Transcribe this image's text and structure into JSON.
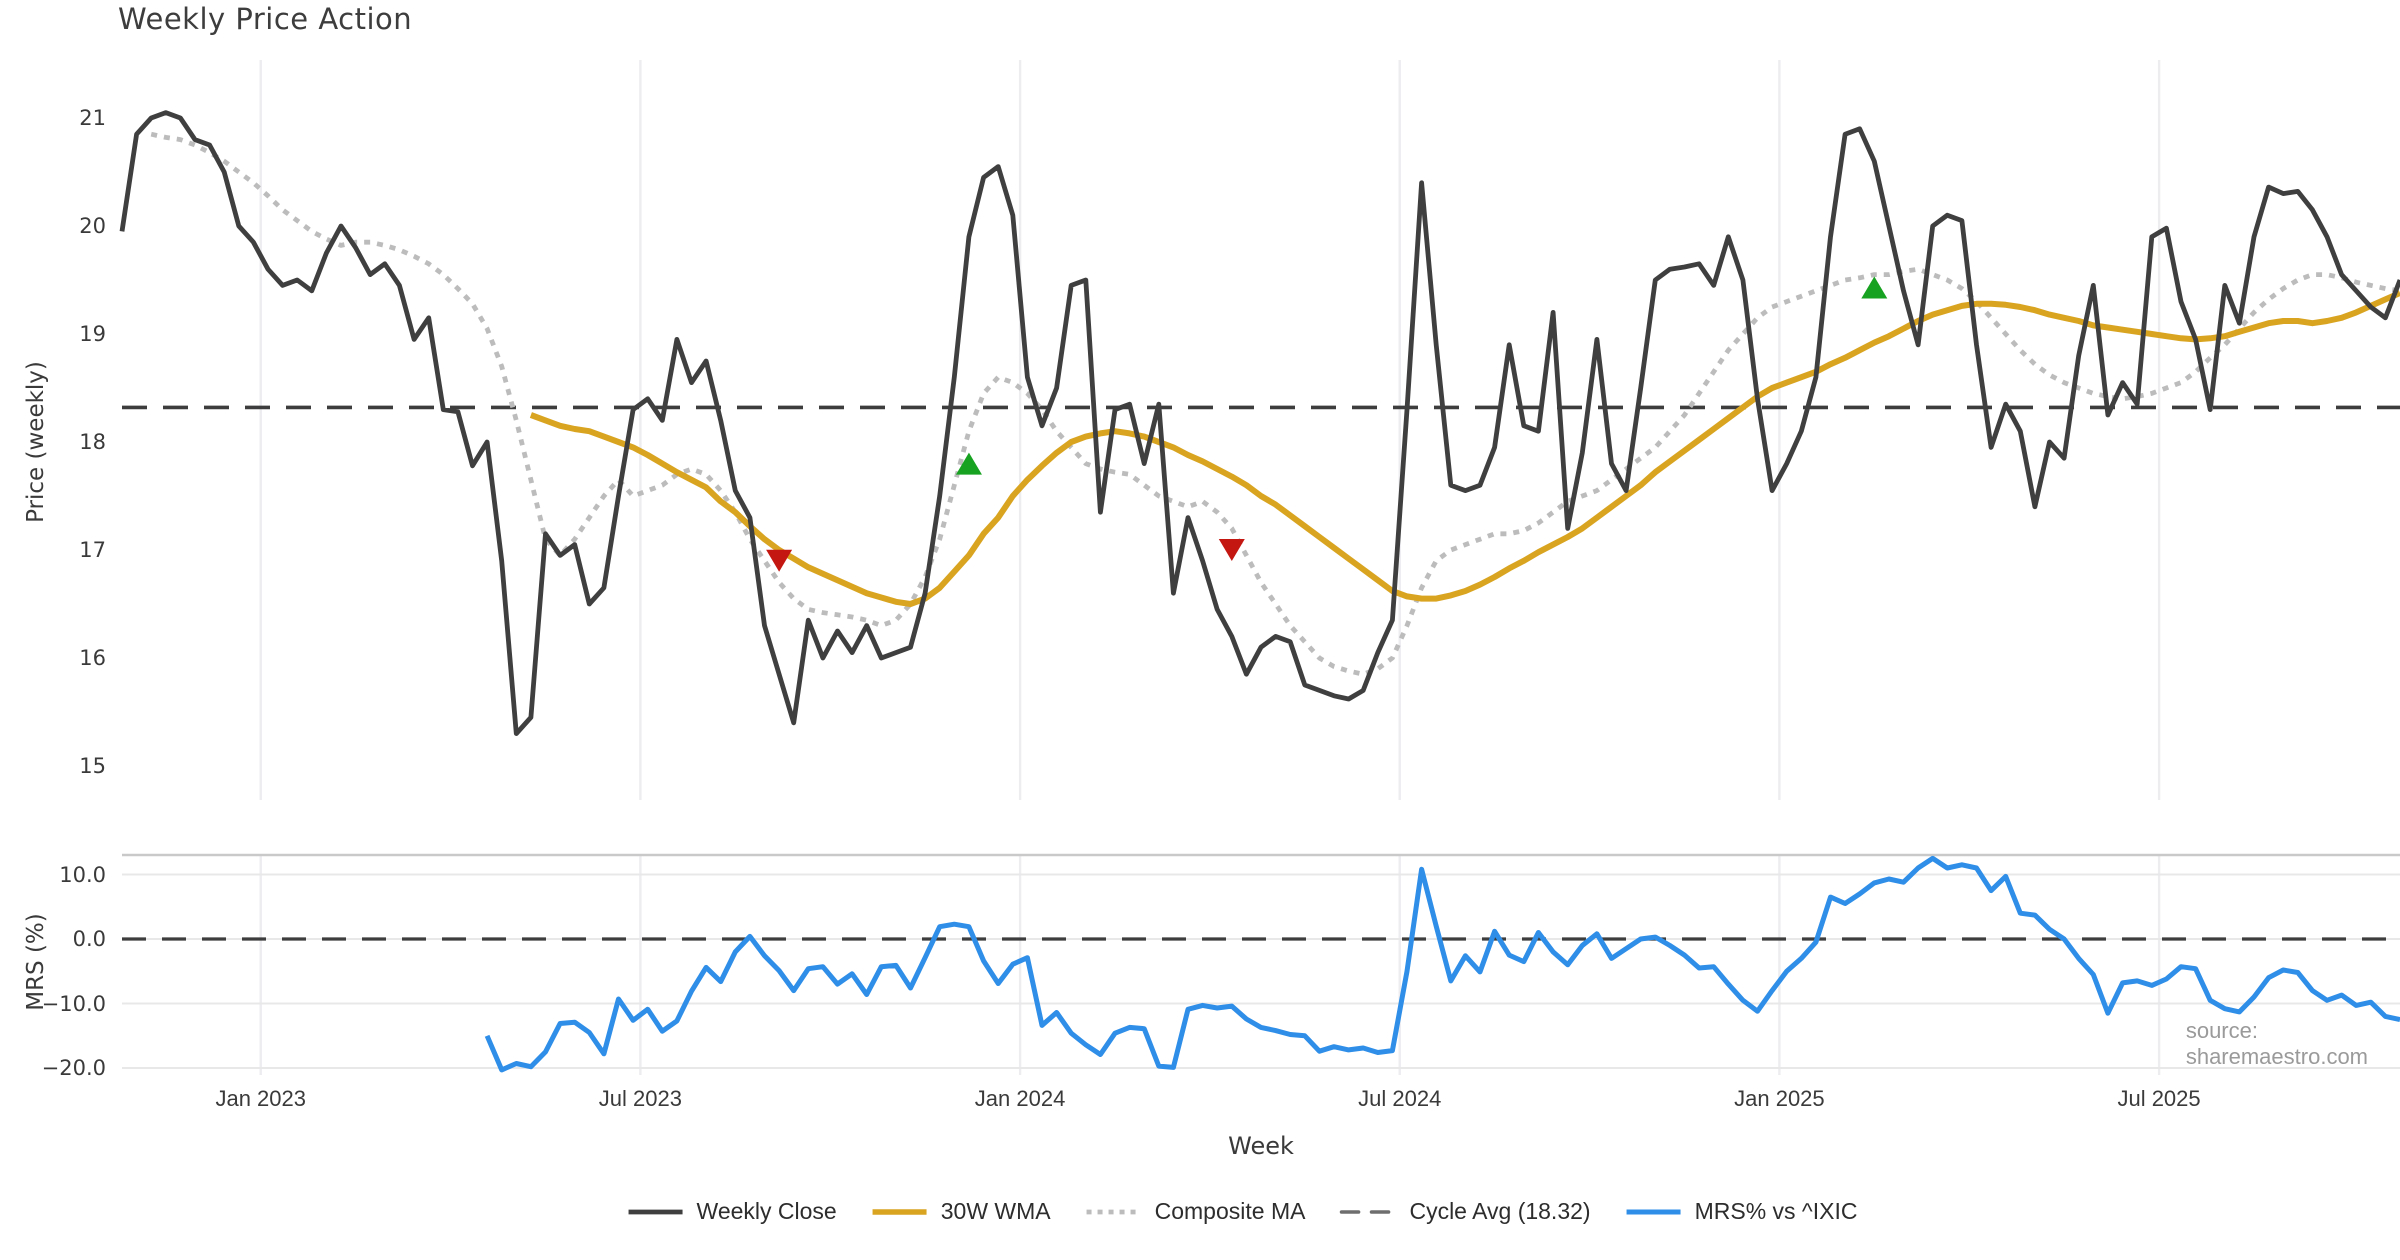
{
  "title": "Weekly Price Action",
  "source": "source: sharemaestro.com",
  "colors": {
    "close": "#3f3f3f",
    "wma": "#d9a420",
    "composite": "#bcbcbc",
    "cycle": "#3d3d3d",
    "cycle_legend": "#6e6e6e",
    "mrs": "#2e8ee8",
    "buy": "#18a221",
    "sell": "#c41712",
    "grid": "#ededf0",
    "spine": "#c9c9c9",
    "text": "#3a3a3a",
    "muted": "#9a9a9a"
  },
  "legend": {
    "items": [
      {
        "key": "close",
        "label": "Weekly Close"
      },
      {
        "key": "wma",
        "label": "30W WMA"
      },
      {
        "key": "composite",
        "label": "Composite MA"
      },
      {
        "key": "cycle",
        "label": "Cycle Avg (18.32)"
      },
      {
        "key": "mrs",
        "label": "MRS% vs ^IXIC"
      }
    ]
  },
  "chart_data": {
    "type": "line",
    "title": "Weekly Price Action",
    "xlabel": "Week",
    "x_unit": "week index (0 = first plotted week, late Oct 2022; 1 step = 1 week)",
    "xlim": [
      0,
      156
    ],
    "xticks": [
      {
        "week": 9.5,
        "label": "Jan 2023"
      },
      {
        "week": 35.5,
        "label": "Jul 2023"
      },
      {
        "week": 61.5,
        "label": "Jan 2024"
      },
      {
        "week": 87.5,
        "label": "Jul 2024"
      },
      {
        "week": 113.5,
        "label": "Jan 2025"
      },
      {
        "week": 139.5,
        "label": "Jul 2025"
      }
    ],
    "panels": {
      "price": {
        "ylabel": "Price (weekly)",
        "ylim": [
          14.9,
          21.55
        ],
        "grid": "vertical-only",
        "yticks": [
          {
            "v": 21,
            "label": "21"
          },
          {
            "v": 20,
            "label": "20"
          },
          {
            "v": 19,
            "label": "19"
          },
          {
            "v": 18,
            "label": "18"
          },
          {
            "v": 17,
            "label": "17"
          },
          {
            "v": 16,
            "label": "16"
          },
          {
            "v": 15,
            "label": "15"
          }
        ],
        "cycle_avg": 18.32,
        "signals": {
          "buy": [
            {
              "week": 58,
              "price": 17.8
            },
            {
              "week": 120,
              "price": 19.43
            }
          ],
          "sell": [
            {
              "week": 45,
              "price": 16.9
            },
            {
              "week": 76,
              "price": 17.0
            }
          ]
        },
        "series": [
          {
            "name": "Weekly Close",
            "key": "close",
            "start_week": 0,
            "values": [
              19.95,
              20.85,
              21.0,
              21.05,
              21.0,
              20.8,
              20.75,
              20.5,
              20.0,
              19.85,
              19.6,
              19.45,
              19.5,
              19.4,
              19.75,
              20.0,
              19.8,
              19.55,
              19.65,
              19.45,
              18.95,
              19.15,
              18.3,
              18.28,
              17.78,
              18.0,
              16.9,
              15.3,
              15.45,
              17.15,
              16.95,
              17.05,
              16.5,
              16.65,
              17.5,
              18.3,
              18.4,
              18.2,
              18.95,
              18.55,
              18.75,
              18.2,
              17.55,
              17.3,
              16.3,
              15.85,
              15.4,
              16.35,
              16.0,
              16.25,
              16.05,
              16.3,
              16.0,
              16.05,
              16.1,
              16.6,
              17.5,
              18.6,
              19.9,
              20.45,
              20.55,
              20.1,
              18.6,
              18.15,
              18.5,
              19.45,
              19.5,
              17.35,
              18.3,
              18.35,
              17.8,
              18.35,
              16.6,
              17.3,
              16.9,
              16.45,
              16.2,
              15.85,
              16.1,
              16.2,
              16.15,
              15.75,
              15.7,
              15.65,
              15.62,
              15.7,
              16.05,
              16.35,
              18.3,
              20.4,
              18.9,
              17.6,
              17.55,
              17.6,
              17.95,
              18.9,
              18.15,
              18.1,
              19.2,
              17.2,
              17.9,
              18.95,
              17.8,
              17.55,
              18.5,
              19.5,
              19.6,
              19.62,
              19.65,
              19.45,
              19.9,
              19.5,
              18.4,
              17.55,
              17.8,
              18.1,
              18.6,
              19.9,
              20.85,
              20.9,
              20.6,
              20.0,
              19.4,
              18.9,
              20.0,
              20.1,
              20.05,
              18.9,
              17.95,
              18.35,
              18.1,
              17.4,
              18.0,
              17.85,
              18.8,
              19.45,
              18.25,
              18.55,
              18.35,
              19.9,
              19.98,
              19.3,
              18.95,
              18.3,
              19.45,
              19.1,
              19.9,
              20.36,
              20.3,
              20.32,
              20.15,
              19.9,
              19.55,
              19.4,
              19.25,
              19.15,
              19.5
            ]
          },
          {
            "name": "30W WMA",
            "key": "wma",
            "start_week": 28,
            "values": [
              18.25,
              18.2,
              18.15,
              18.12,
              18.1,
              18.05,
              18.0,
              17.95,
              17.88,
              17.8,
              17.72,
              17.65,
              17.58,
              17.45,
              17.35,
              17.22,
              17.1,
              17.0,
              16.92,
              16.84,
              16.78,
              16.72,
              16.66,
              16.6,
              16.56,
              16.52,
              16.5,
              16.55,
              16.65,
              16.8,
              16.95,
              17.15,
              17.3,
              17.5,
              17.65,
              17.78,
              17.9,
              18.0,
              18.05,
              18.08,
              18.1,
              18.08,
              18.05,
              18.0,
              17.95,
              17.88,
              17.82,
              17.75,
              17.68,
              17.6,
              17.5,
              17.42,
              17.32,
              17.22,
              17.12,
              17.02,
              16.92,
              16.82,
              16.72,
              16.62,
              16.57,
              16.55,
              16.55,
              16.58,
              16.62,
              16.68,
              16.75,
              16.83,
              16.9,
              16.98,
              17.05,
              17.12,
              17.2,
              17.3,
              17.4,
              17.5,
              17.6,
              17.72,
              17.82,
              17.92,
              18.02,
              18.12,
              18.22,
              18.32,
              18.42,
              18.5,
              18.55,
              18.6,
              18.65,
              18.72,
              18.78,
              18.85,
              18.92,
              18.98,
              19.05,
              19.12,
              19.18,
              19.22,
              19.26,
              19.28,
              19.28,
              19.27,
              19.25,
              19.22,
              19.18,
              19.15,
              19.12,
              19.08,
              19.06,
              19.04,
              19.02,
              19.0,
              18.98,
              18.96,
              18.95,
              18.96,
              18.98,
              19.02,
              19.06,
              19.1,
              19.12,
              19.12,
              19.1,
              19.12,
              19.15,
              19.2,
              19.26,
              19.32,
              19.38
            ]
          },
          {
            "name": "Composite MA",
            "key": "composite",
            "start_week": 2,
            "values": [
              20.85,
              20.82,
              20.8,
              20.75,
              20.68,
              20.6,
              20.5,
              20.4,
              20.28,
              20.15,
              20.05,
              19.95,
              19.88,
              19.82,
              19.85,
              19.85,
              19.82,
              19.78,
              19.72,
              19.65,
              19.55,
              19.42,
              19.28,
              19.05,
              18.7,
              18.2,
              17.65,
              17.1,
              16.95,
              17.1,
              17.3,
              17.5,
              17.65,
              17.5,
              17.55,
              17.6,
              17.7,
              17.75,
              17.7,
              17.55,
              17.35,
              17.1,
              16.9,
              16.7,
              16.55,
              16.45,
              16.42,
              16.4,
              16.38,
              16.35,
              16.3,
              16.35,
              16.5,
              16.75,
              17.1,
              17.6,
              18.1,
              18.45,
              18.6,
              18.55,
              18.45,
              18.3,
              18.1,
              17.95,
              17.8,
              17.75,
              17.72,
              17.7,
              17.6,
              17.5,
              17.45,
              17.4,
              17.45,
              17.35,
              17.2,
              16.95,
              16.7,
              16.5,
              16.3,
              16.15,
              16.0,
              15.92,
              15.88,
              15.85,
              15.9,
              16.0,
              16.3,
              16.65,
              16.9,
              17.0,
              17.05,
              17.1,
              17.15,
              17.15,
              17.18,
              17.25,
              17.35,
              17.45,
              17.5,
              17.55,
              17.65,
              17.75,
              17.85,
              17.95,
              18.1,
              18.25,
              18.45,
              18.65,
              18.85,
              19.0,
              19.15,
              19.25,
              19.3,
              19.35,
              19.4,
              19.45,
              19.5,
              19.52,
              19.55,
              19.55,
              19.58,
              19.6,
              19.55,
              19.5,
              19.42,
              19.3,
              19.15,
              19.0,
              18.85,
              18.72,
              18.62,
              18.55,
              18.5,
              18.45,
              18.42,
              18.4,
              18.42,
              18.45,
              18.5,
              18.55,
              18.65,
              18.78,
              18.9,
              19.05,
              19.2,
              19.32,
              19.42,
              19.5,
              19.55,
              19.55,
              19.52,
              19.48,
              19.45,
              19.42,
              19.4
            ]
          },
          {
            "name": "Cycle Avg",
            "key": "cycle",
            "type": "hline",
            "value": 18.32
          }
        ]
      },
      "mrs": {
        "ylabel": "MRS (%)",
        "ylim": [
          -22,
          13
        ],
        "grid": "horizontal",
        "yticks": [
          {
            "v": 10,
            "label": "10.0"
          },
          {
            "v": 0,
            "label": "0.0"
          },
          {
            "v": -10,
            "label": "−10.0"
          },
          {
            "v": -20,
            "label": "−20.0"
          }
        ],
        "series": [
          {
            "name": "MRS% vs ^IXIC",
            "key": "mrs",
            "start_week": 25,
            "values": [
              -15.0,
              -20.3,
              -19.3,
              -19.8,
              -17.5,
              -13.1,
              -12.9,
              -14.5,
              -17.8,
              -9.3,
              -12.6,
              -10.9,
              -14.3,
              -12.7,
              -8.1,
              -4.4,
              -6.6,
              -2.0,
              0.4,
              -2.6,
              -4.9,
              -8.0,
              -4.6,
              -4.3,
              -7.0,
              -5.4,
              -8.6,
              -4.3,
              -4.1,
              -7.6,
              -2.9,
              1.9,
              2.3,
              1.9,
              -3.4,
              -6.9,
              -3.9,
              -2.9,
              -13.4,
              -11.4,
              -14.6,
              -16.4,
              -17.9,
              -14.6,
              -13.7,
              -13.9,
              -19.7,
              -19.9,
              -10.9,
              -10.3,
              -10.7,
              -10.4,
              -12.4,
              -13.7,
              -14.2,
              -14.8,
              -15.0,
              -17.4,
              -16.7,
              -17.2,
              -16.9,
              -17.6,
              -17.3,
              -5.0,
              10.8,
              2.0,
              -6.5,
              -2.6,
              -5.1,
              1.2,
              -2.5,
              -3.5,
              1.0,
              -2.0,
              -4.0,
              -1.0,
              0.8,
              -3.0,
              -1.5,
              0.0,
              0.3,
              -1.0,
              -2.5,
              -4.5,
              -4.3,
              -7.0,
              -9.5,
              -11.2,
              -8.0,
              -5.0,
              -3.0,
              -0.5,
              6.5,
              5.5,
              7.0,
              8.7,
              9.3,
              8.8,
              11.0,
              12.5,
              11.0,
              11.5,
              11.0,
              7.5,
              9.7,
              4.0,
              3.7,
              1.5,
              0.0,
              -3.0,
              -5.5,
              -11.5,
              -6.8,
              -6.5,
              -7.2,
              -6.2,
              -4.3,
              -4.6,
              -9.5,
              -10.8,
              -11.3,
              -9.0,
              -6.0,
              -4.8,
              -5.2,
              -8.0,
              -9.5,
              -8.7,
              -10.3,
              -9.8,
              -12.0,
              -12.5
            ]
          },
          {
            "name": "Zero line",
            "key": "zero",
            "type": "hline",
            "value": 0
          }
        ]
      }
    }
  }
}
